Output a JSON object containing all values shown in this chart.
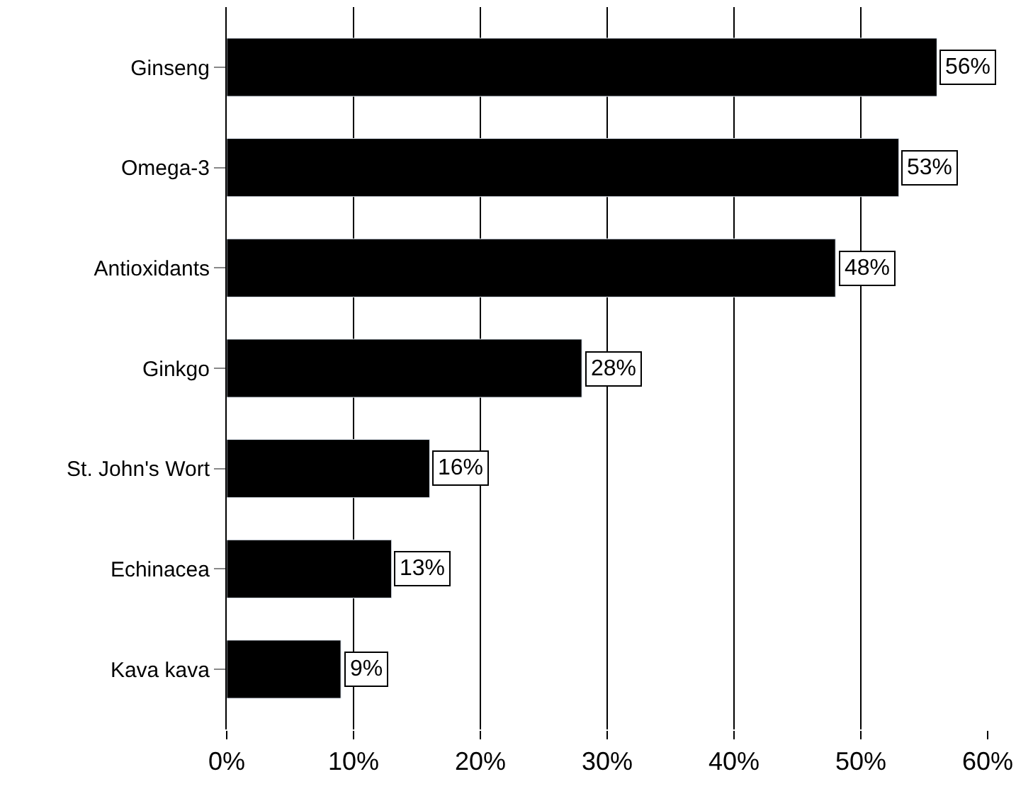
{
  "chart_data": {
    "type": "bar",
    "orientation": "horizontal",
    "categories": [
      "Ginseng",
      "Omega-3",
      "Antioxidants",
      "Ginkgo",
      "St. John's Wort",
      "Echinacea",
      "Kava kava"
    ],
    "values": [
      56,
      53,
      48,
      28,
      16,
      13,
      9
    ],
    "value_labels": [
      "56%",
      "53%",
      "48%",
      "28%",
      "16%",
      "13%",
      "9%"
    ],
    "color": "#000000",
    "xlim": [
      0,
      60
    ],
    "xticks": [
      {
        "value": 0,
        "label": "0%"
      },
      {
        "value": 10,
        "label": "10%"
      },
      {
        "value": 20,
        "label": "20%"
      },
      {
        "value": 30,
        "label": "30%"
      },
      {
        "value": 40,
        "label": "40%"
      },
      {
        "value": 50,
        "label": "50%"
      },
      {
        "value": 60,
        "label": "60%"
      }
    ],
    "grid": "x",
    "legend": false
  }
}
